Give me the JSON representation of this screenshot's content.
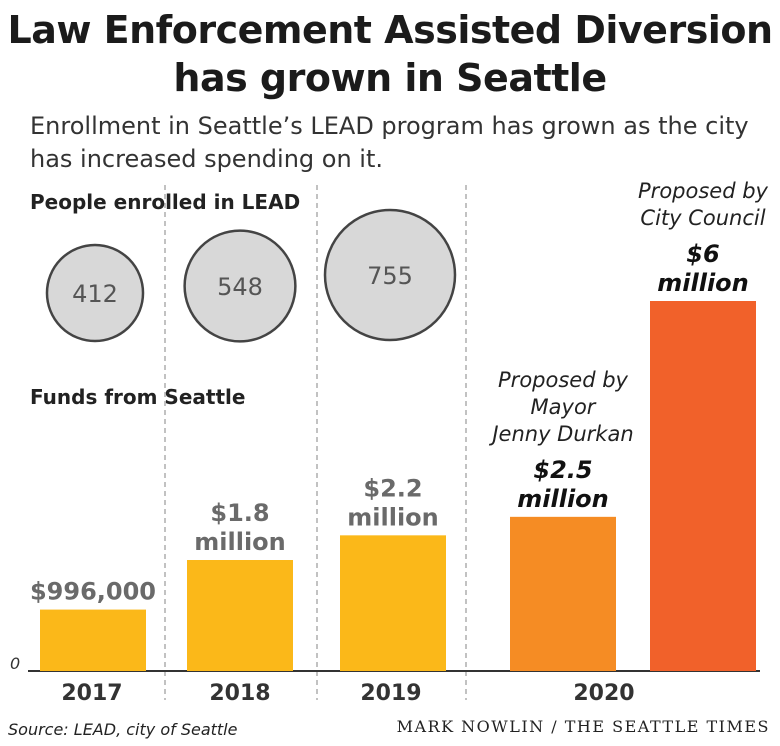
{
  "header": {
    "title_line1": "Law Enforcement Assisted Diversion",
    "title_line2": "has grown in Seattle",
    "subtitle_line1": "Enrollment in Seattle’s LEAD program has grown as the city",
    "subtitle_line2": "has increased spending on it."
  },
  "sections": {
    "enrolled_label": "People enrolled in LEAD",
    "funds_label": "Funds from Seattle"
  },
  "chart_data": [
    {
      "type": "bubble",
      "title": "People enrolled in LEAD",
      "categories": [
        "2017",
        "2018",
        "2019"
      ],
      "values": [
        412,
        548,
        755
      ],
      "labels": [
        "412",
        "548",
        "755"
      ],
      "color": "#d8d8d8"
    },
    {
      "type": "bar",
      "title": "Funds from Seattle",
      "categories": [
        "2017",
        "2018",
        "2019",
        "2020",
        "2020"
      ],
      "values": [
        996000,
        1800000,
        2200000,
        2500000,
        6000000
      ],
      "value_labels": [
        [
          "$996,000"
        ],
        [
          "$1.8",
          "million"
        ],
        [
          "$2.2",
          "million"
        ],
        [
          "$2.5",
          "million"
        ],
        [
          "$6",
          "million"
        ]
      ],
      "notes": [
        [],
        [],
        [],
        [
          "Proposed by",
          "Mayor",
          "Jenny Durkan"
        ],
        [
          "Proposed by",
          "City Council"
        ]
      ],
      "colors": [
        "#fbb819",
        "#fbb819",
        "#fbb819",
        "#f58c24",
        "#f1612a"
      ],
      "ylim": [
        0,
        6000000
      ],
      "ytick": "0",
      "xticks": [
        "2017",
        "2018",
        "2019",
        "2020"
      ]
    }
  ],
  "footer": {
    "source": "Source: LEAD, city of Seattle",
    "credit": "MARK NOWLIN / THE SEATTLE TIMES"
  }
}
